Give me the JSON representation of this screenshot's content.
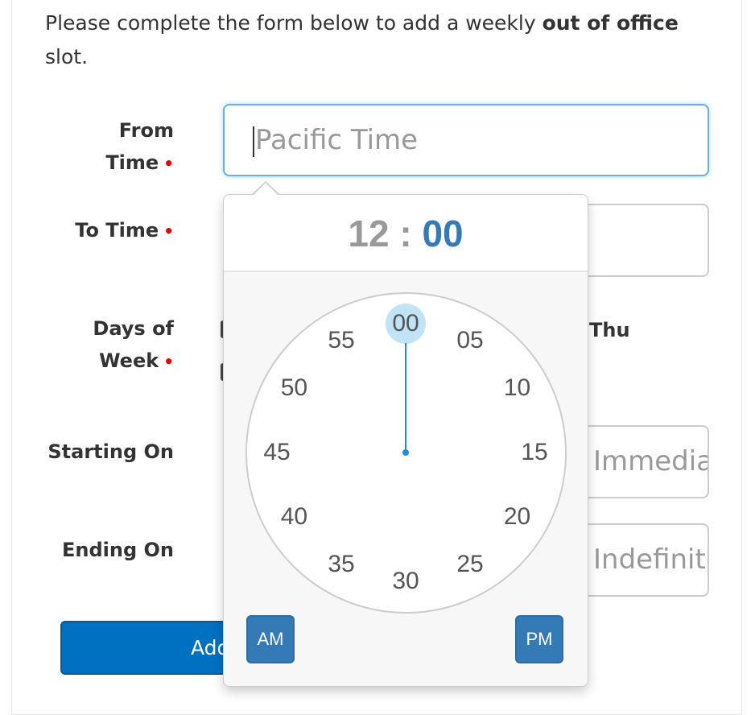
{
  "intro": {
    "text_before": "Please complete the form below to add a weekly ",
    "bold": "out of office",
    "text_after": " slot."
  },
  "form": {
    "from_time": {
      "label_line1": "From",
      "label_line2": "Time",
      "required": "•",
      "placeholder": "Pacific Time"
    },
    "to_time": {
      "label": "To Time",
      "required": "•"
    },
    "days_of_week": {
      "label_line1": "Days of",
      "label_line2": "Week",
      "required": "•",
      "visible_day": "Thu"
    },
    "starting_on": {
      "label": "Starting On",
      "placeholder": "Immediately"
    },
    "ending_on": {
      "label": "Ending On",
      "placeholder": "Indefinitely"
    },
    "submit_label": "Add"
  },
  "timepicker": {
    "hours": "12",
    "separator": ":",
    "minutes": "00",
    "selected_minute": "00",
    "minute_ticks": [
      "00",
      "05",
      "10",
      "15",
      "20",
      "25",
      "30",
      "35",
      "40",
      "45",
      "50",
      "55"
    ],
    "am_label": "AM",
    "pm_label": "PM"
  },
  "colors": {
    "accent": "#337ab7",
    "button": "#0070c0",
    "required": "#e00000",
    "dial_selection": "#c0e4f6"
  }
}
